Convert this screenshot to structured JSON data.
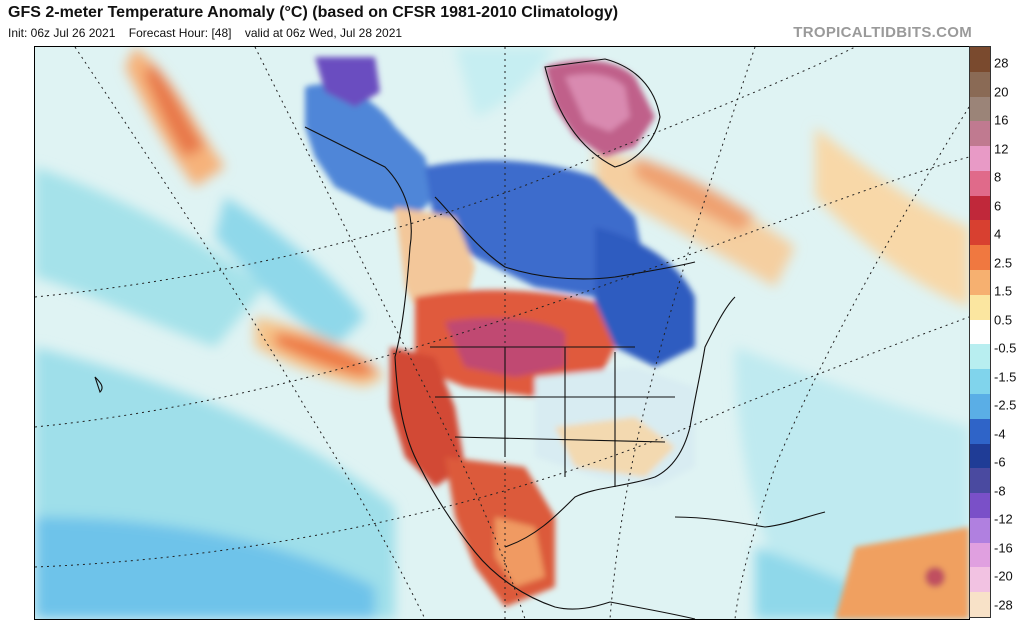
{
  "header": {
    "title": "GFS 2-meter Temperature Anomaly (°C) (based on CFSR 1981-2010 Climatology)",
    "init": "Init: 06z Jul 26 2021",
    "forecast_hour": "Forecast Hour: [48]",
    "valid": "valid at 06z Wed, Jul 28 2021",
    "credit": "TROPICALTIDBITS.COM"
  },
  "colorbar": {
    "labels": [
      "28",
      "20",
      "16",
      "12",
      "8",
      "6",
      "4",
      "2.5",
      "1.5",
      "0.5",
      "-0.5",
      "-1.5",
      "-2.5",
      "-4",
      "-6",
      "-8",
      "-12",
      "-16",
      "-20",
      "-28"
    ],
    "colors": [
      "#7a4a2e",
      "#8a6a55",
      "#9b8478",
      "#c07a90",
      "#e89ac6",
      "#e06a8a",
      "#c0283a",
      "#d84030",
      "#f07840",
      "#f6b070",
      "#fbe6a0",
      "#ffffff",
      "#b8eef0",
      "#80d4ec",
      "#5aaee6",
      "#2f64c8",
      "#1f3c96",
      "#4a4aa0",
      "#7a50c8",
      "#b080e0",
      "#e0a0e0",
      "#f2c2e2",
      "#f8e2c8"
    ]
  },
  "map": {
    "regions": [
      {
        "name": "Alaska",
        "anomaly": "cold"
      },
      {
        "name": "Northern Canada",
        "anomaly": "cold"
      },
      {
        "name": "Greenland",
        "anomaly": "warm"
      },
      {
        "name": "Northern Plains",
        "anomaly": "warm"
      },
      {
        "name": "Western US",
        "anomaly": "warm"
      },
      {
        "name": "Mexico",
        "anomaly": "warm"
      },
      {
        "name": "Eastern Pacific",
        "anomaly": "warm"
      },
      {
        "name": "Eastern US",
        "anomaly": "cold"
      }
    ]
  }
}
